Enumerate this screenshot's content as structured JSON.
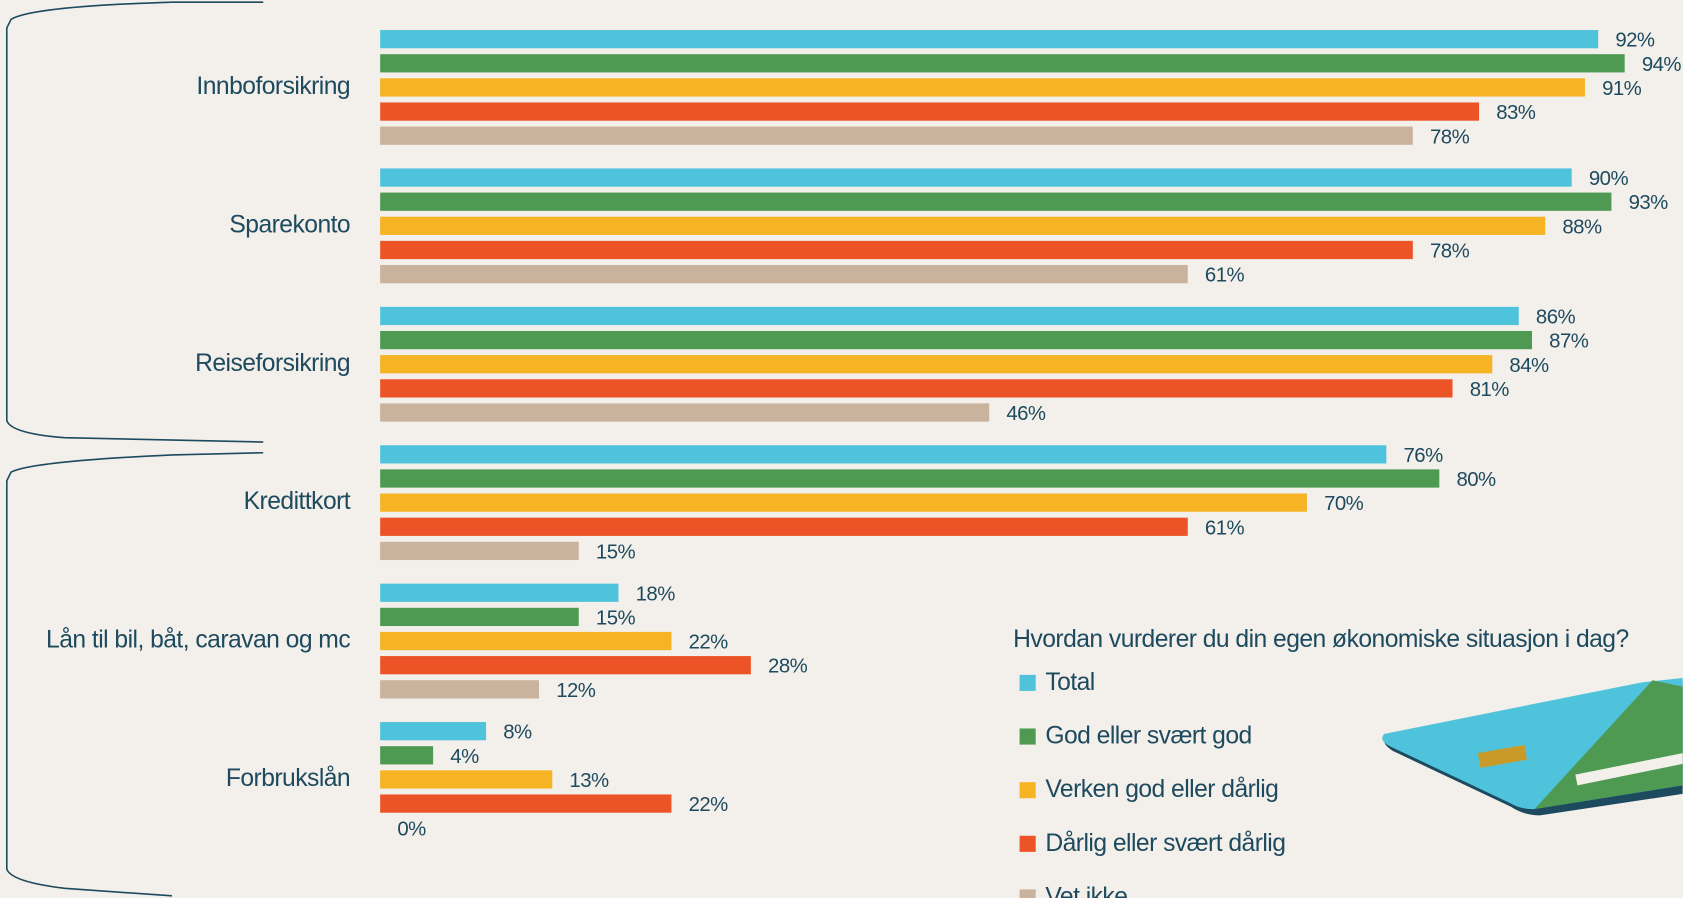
{
  "chart_data": {
    "type": "bar",
    "orientation": "horizontal",
    "categories": [
      "Innboforsikring",
      "Sparekonto",
      "Reiseforsikring",
      "Kredittkort",
      "Lån til bil, båt, caravan og mc",
      "Forbrukslån"
    ],
    "legend_title": "Hvordan vurderer du din egen økonomiske situasjon i dag?",
    "series": [
      {
        "name": "Total",
        "color": "#4fc3dc",
        "values": [
          92,
          90,
          86,
          76,
          18,
          8
        ],
        "value_labels": [
          "92%",
          "90%",
          "86%",
          "76%",
          "18%",
          "8%"
        ]
      },
      {
        "name": "God eller svært god",
        "color": "#4e9a52",
        "values": [
          94,
          93,
          87,
          80,
          15,
          4
        ],
        "value_labels": [
          "94%",
          "93%",
          "87%",
          "80%",
          "15%",
          "4%"
        ]
      },
      {
        "name": "Verken god eller dårlig",
        "color": "#f6b323",
        "values": [
          91,
          88,
          84,
          70,
          22,
          13
        ],
        "value_labels": [
          "91%",
          "88%",
          "84%",
          "70%",
          "22%",
          "13%"
        ]
      },
      {
        "name": "Dårlig eller svært dårlig",
        "color": "#ec5428",
        "values": [
          83,
          78,
          81,
          61,
          28,
          22
        ],
        "value_labels": [
          "83%",
          "78%",
          "81%",
          "61%",
          "28%",
          "22%"
        ]
      },
      {
        "name": "Vet ikke",
        "color": "#c9b39d",
        "values": [
          78,
          61,
          46,
          15,
          12,
          0
        ],
        "value_labels": [
          "78%",
          "61%",
          "46%",
          "15%",
          "12%",
          "0%"
        ]
      }
    ]
  }
}
